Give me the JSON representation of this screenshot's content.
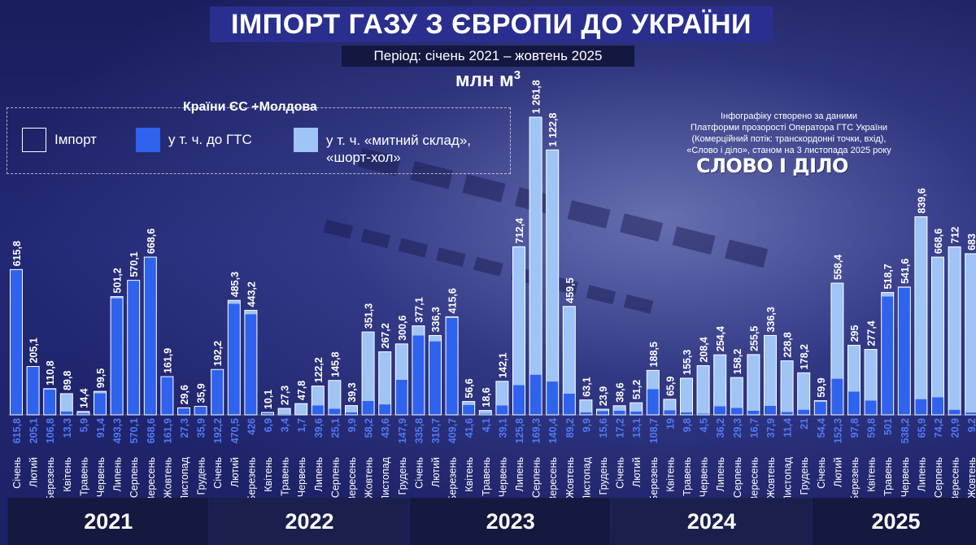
{
  "header": {
    "title": "ІМПОРТ ГАЗУ З ЄВРОПИ ДО УКРАЇНИ",
    "subtitle": "Період: січень 2021 – жовтень 2025",
    "units": "млн м",
    "units_sup": "3"
  },
  "legend": {
    "title": "Країни ЄС +Молдова",
    "items": [
      {
        "label": "Імпорт"
      },
      {
        "label": "у т. ч. до ГТС"
      },
      {
        "label": "у т. ч. «митний склад»,",
        "label2": "«шорт-хол»"
      }
    ]
  },
  "credit": {
    "lines": [
      "Інфографіку створено за даними",
      "Платформи прозорості Оператора ГТС України",
      "(Комерційний потік: транскордонні точки, вхід),",
      "«Слово і діло», станом на 3 листопада 2025 року"
    ],
    "logo": "СЛОВО І ДІЛО"
  },
  "colors": {
    "gts": "#2f63ee",
    "customs": "#9fc4f5",
    "import_outline": "#ffffff",
    "gts_label": "#4f7af7"
  },
  "chart_data": {
    "type": "bar",
    "ylabel": "млн м3",
    "ylim": [
      0,
      1261.8
    ],
    "series_names": [
      "Імпорт",
      "у т. ч. до ГТС",
      "у т. ч. «митний склад», «шорт-хол»"
    ],
    "years": [
      {
        "year": "2021",
        "months": [
          {
            "m": "Січень",
            "total": "615,8",
            "gts": "615,8"
          },
          {
            "m": "Лютий",
            "total": "205,1",
            "gts": "205,1"
          },
          {
            "m": "Березень",
            "total": "110,8",
            "gts": "106,8"
          },
          {
            "m": "Квітень",
            "total": "89,8",
            "gts": "13,3"
          },
          {
            "m": "Травень",
            "total": "14,4",
            "gts": "5,9"
          },
          {
            "m": "Червень",
            "total": "99,5",
            "gts": "91,4"
          },
          {
            "m": "Липень",
            "total": "501,2",
            "gts": "493,3"
          },
          {
            "m": "Серпень",
            "total": "570,1",
            "gts": "570,1"
          },
          {
            "m": "Вересень",
            "total": "668,6",
            "gts": "668,6"
          },
          {
            "m": "Жовтень",
            "total": "161,9",
            "gts": "161,9"
          },
          {
            "m": "Листопад",
            "total": "29,6",
            "gts": "27,3"
          },
          {
            "m": "Грудень",
            "total": "35,9",
            "gts": "35,9"
          }
        ]
      },
      {
        "year": "2022",
        "months": [
          {
            "m": "Січень",
            "total": "192,2",
            "gts": "192,2"
          },
          {
            "m": "Лютий",
            "total": "485,3",
            "gts": "470,5"
          },
          {
            "m": "Березень",
            "total": "443,2",
            "gts": "426"
          },
          {
            "m": "Квітень",
            "total": "10,1",
            "gts": "6,9"
          },
          {
            "m": "Травень",
            "total": "27,3",
            "gts": "3,4"
          },
          {
            "m": "Червень",
            "total": "47,8",
            "gts": "1,7"
          },
          {
            "m": "Липень",
            "total": "122,2",
            "gts": "39,6"
          },
          {
            "m": "Серпень",
            "total": "145,8",
            "gts": "25,1"
          },
          {
            "m": "Вересень",
            "total": "39,3",
            "gts": "9,9"
          },
          {
            "m": "Жовтень",
            "total": "351,3",
            "gts": "58,2"
          },
          {
            "m": "Листопад",
            "total": "267,2",
            "gts": "43,6"
          },
          {
            "m": "Грудень",
            "total": "300,6",
            "gts": "147,9"
          }
        ]
      },
      {
        "year": "2023",
        "months": [
          {
            "m": "Січень",
            "total": "377,1",
            "gts": "335,8"
          },
          {
            "m": "Лютий",
            "total": "336,3",
            "gts": "310,7"
          },
          {
            "m": "Березень",
            "total": "415,6",
            "gts": "409,7"
          },
          {
            "m": "Квітень",
            "total": "56,6",
            "gts": "41,6"
          },
          {
            "m": "Травень",
            "total": "18,6",
            "gts": "4,1"
          },
          {
            "m": "Червень",
            "total": "142,1",
            "gts": "39,1"
          },
          {
            "m": "Липень",
            "total": "712,4",
            "gts": "125,8"
          },
          {
            "m": "Серпень",
            "total": "1 261,8",
            "gts": "169,3"
          },
          {
            "m": "Вересень",
            "total": "1 122,8",
            "gts": "140,4"
          },
          {
            "m": "Жовтень",
            "total": "459,5",
            "gts": "89,2"
          },
          {
            "m": "Листопад",
            "total": "63,1",
            "gts": "9,9"
          },
          {
            "m": "Грудень",
            "total": "23,9",
            "gts": "15,6"
          }
        ]
      },
      {
        "year": "2024",
        "months": [
          {
            "m": "Січень",
            "total": "38,6",
            "gts": "17,2"
          },
          {
            "m": "Лютий",
            "total": "51,2",
            "gts": "13,1"
          },
          {
            "m": "Березень",
            "total": "188,5",
            "gts": "108,7"
          },
          {
            "m": "Квітень",
            "total": "65,9",
            "gts": "19"
          },
          {
            "m": "Травень",
            "total": "155,3",
            "gts": "9,8"
          },
          {
            "m": "Червень",
            "total": "208,4",
            "gts": "4,5"
          },
          {
            "m": "Липень",
            "total": "254,4",
            "gts": "36,2"
          },
          {
            "m": "Серпень",
            "total": "158,2",
            "gts": "29,3"
          },
          {
            "m": "Вересень",
            "total": "255,5",
            "gts": "16,7"
          },
          {
            "m": "Жовтень",
            "total": "336,3",
            "gts": "37,9"
          },
          {
            "m": "Листопад",
            "total": "228,8",
            "gts": "11,4"
          },
          {
            "m": "Грудень",
            "total": "178,2",
            "gts": "21"
          }
        ]
      },
      {
        "year": "2025",
        "months": [
          {
            "m": "Січень",
            "total": "59,9",
            "gts": "54,4"
          },
          {
            "m": "Лютий",
            "total": "558,4",
            "gts": "152,3"
          },
          {
            "m": "Березень",
            "total": "295",
            "gts": "97,8"
          },
          {
            "m": "Квітень",
            "total": "277,4",
            "gts": "59,8"
          },
          {
            "m": "Травень",
            "total": "518,7",
            "gts": "501"
          },
          {
            "m": "Червень",
            "total": "541,6",
            "gts": "538,2"
          },
          {
            "m": "Липень",
            "total": "839,6",
            "gts": "65,9"
          },
          {
            "m": "Серпень",
            "total": "668,6",
            "gts": "74,2"
          },
          {
            "m": "Вересень",
            "total": "712",
            "gts": "20,9"
          },
          {
            "m": "Жовтень",
            "total": "683",
            "gts": "9,2"
          }
        ]
      }
    ]
  }
}
